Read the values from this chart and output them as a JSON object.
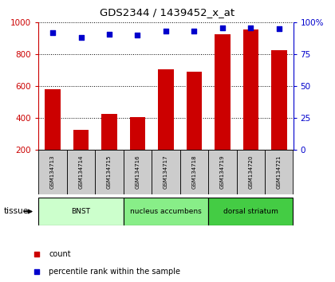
{
  "title": "GDS2344 / 1439452_x_at",
  "samples": [
    "GSM134713",
    "GSM134714",
    "GSM134715",
    "GSM134716",
    "GSM134717",
    "GSM134718",
    "GSM134719",
    "GSM134720",
    "GSM134721"
  ],
  "counts": [
    580,
    325,
    425,
    405,
    705,
    690,
    925,
    955,
    825
  ],
  "percentiles": [
    92,
    88,
    91,
    90,
    93,
    93,
    96,
    96,
    95
  ],
  "bar_color": "#cc0000",
  "dot_color": "#0000cc",
  "ylim_left": [
    200,
    1000
  ],
  "ylim_right": [
    0,
    100
  ],
  "yticks_left": [
    200,
    400,
    600,
    800,
    1000
  ],
  "yticks_right": [
    0,
    25,
    50,
    75,
    100
  ],
  "groups": [
    {
      "label": "BNST",
      "start": 0,
      "end": 3,
      "color": "#ccffcc"
    },
    {
      "label": "nucleus accumbens",
      "start": 3,
      "end": 6,
      "color": "#88ee88"
    },
    {
      "label": "dorsal striatum",
      "start": 6,
      "end": 9,
      "color": "#44cc44"
    }
  ],
  "tissue_label": "tissue",
  "legend_count_label": "count",
  "legend_pct_label": "percentile rank within the sample",
  "background_color": "#ffffff",
  "sample_bg_color": "#cccccc"
}
